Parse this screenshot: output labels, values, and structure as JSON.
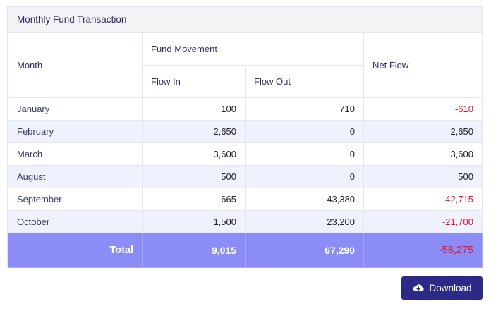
{
  "panel": {
    "title": "Monthly Fund Transaction"
  },
  "table": {
    "headers": {
      "month": "Month",
      "fund_movement": "Fund Movement",
      "flow_in": "Flow In",
      "flow_out": "Flow Out",
      "net_flow": "Net Flow"
    },
    "rows": [
      {
        "month": "January",
        "flow_in": "100",
        "flow_out": "710",
        "net_flow": "-610"
      },
      {
        "month": "February",
        "flow_in": "2,650",
        "flow_out": "0",
        "net_flow": "2,650"
      },
      {
        "month": "March",
        "flow_in": "3,600",
        "flow_out": "0",
        "net_flow": "3,600"
      },
      {
        "month": "August",
        "flow_in": "500",
        "flow_out": "0",
        "net_flow": "500"
      },
      {
        "month": "September",
        "flow_in": "665",
        "flow_out": "43,380",
        "net_flow": "-42,715"
      },
      {
        "month": "October",
        "flow_in": "1,500",
        "flow_out": "23,200",
        "net_flow": "-21,700"
      }
    ],
    "total": {
      "label": "Total",
      "flow_in": "9,015",
      "flow_out": "67,290",
      "net_flow": "-58,275"
    }
  },
  "actions": {
    "download_label": "Download",
    "download_icon": "cloud-download-icon"
  },
  "colors": {
    "total_row_bg": "#8c8cf7",
    "negative": "#e5122c",
    "button_bg": "#2c2a86",
    "stripe": "#eff1fd"
  }
}
